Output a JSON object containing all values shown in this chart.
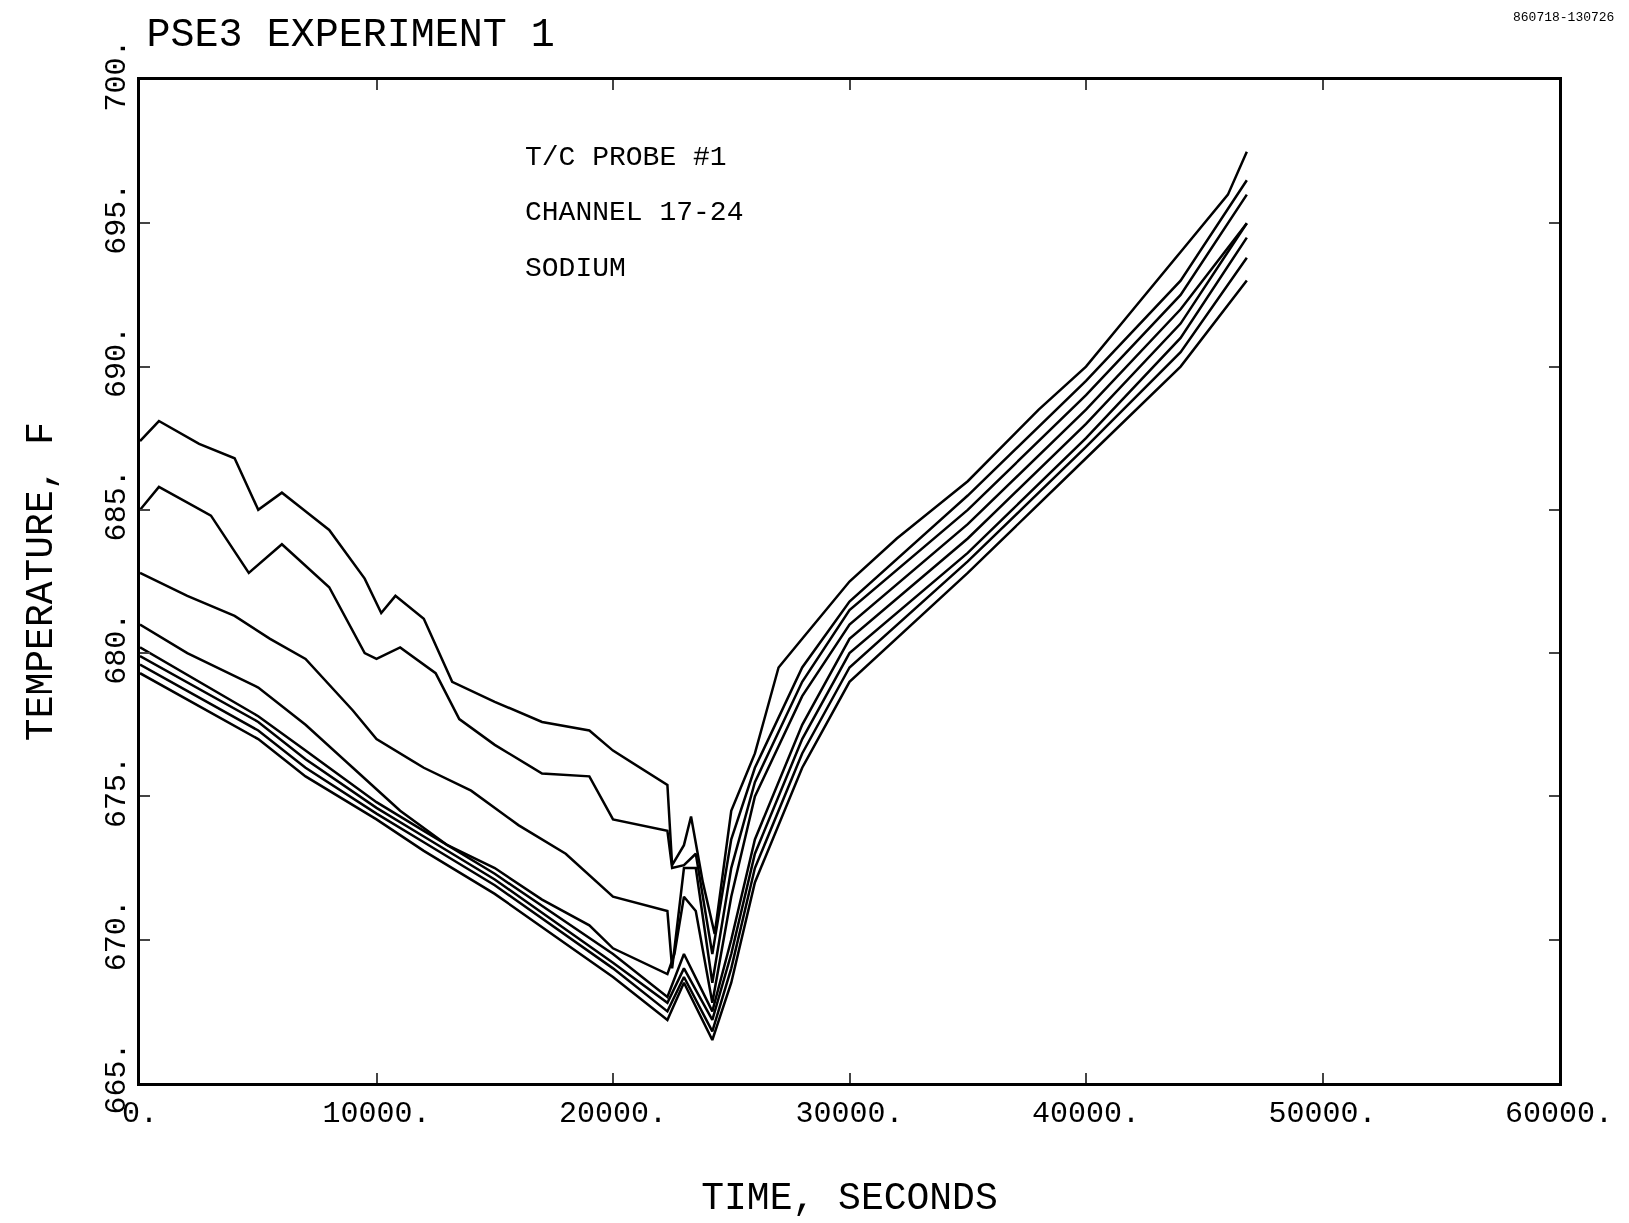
{
  "chart_data": {
    "type": "line",
    "title": "PSE3 EXPERIMENT 1",
    "xlabel": "TIME, SECONDS",
    "ylabel": "TEMPERATURE, F",
    "annotations": [
      "T/C PROBE #1",
      "CHANNEL 17-24",
      "SODIUM",
      "860718-130726"
    ],
    "xlim": [
      0,
      60000
    ],
    "xticks": [
      {
        "value": 0,
        "label": "0."
      },
      {
        "value": 10000,
        "label": "10000."
      },
      {
        "value": 20000,
        "label": "20000."
      },
      {
        "value": 30000,
        "label": "30000."
      },
      {
        "value": 40000,
        "label": "40000."
      },
      {
        "value": 50000,
        "label": "50000."
      },
      {
        "value": 60000,
        "label": "60000."
      }
    ],
    "ylim": [
      665,
      700
    ],
    "yticks": [
      {
        "value": 665,
        "label": "665."
      },
      {
        "value": 670,
        "label": "670."
      },
      {
        "value": 675,
        "label": "675."
      },
      {
        "value": 680,
        "label": "680."
      },
      {
        "value": 685,
        "label": "685."
      },
      {
        "value": 690,
        "label": "690."
      },
      {
        "value": 695,
        "label": "695."
      },
      {
        "value": 700,
        "label": "700."
      }
    ],
    "grid": false,
    "marker": "none",
    "line_style": "solid",
    "series": [
      {
        "color": "#000000",
        "x": [
          0,
          800,
          2500,
          4000,
          5000,
          6000,
          8000,
          9500,
          10200,
          10800,
          12000,
          13200,
          15000,
          17000,
          19000,
          20000,
          22300,
          22500,
          23000,
          23300,
          23800,
          24300,
          25000,
          26000,
          27000,
          28000,
          30000,
          32000,
          35000,
          38000,
          40000,
          42000,
          44000,
          46000,
          46800
        ],
        "values": [
          687.4,
          688.1,
          687.3,
          686.8,
          685.0,
          685.6,
          684.3,
          682.6,
          681.4,
          682.0,
          681.2,
          679.0,
          678.3,
          677.6,
          677.3,
          676.6,
          675.4,
          672.6,
          673.3,
          674.3,
          672.0,
          670.2,
          674.5,
          676.5,
          679.5,
          680.5,
          682.5,
          684.0,
          686.0,
          688.5,
          690.0,
          692.0,
          694.0,
          696.0,
          697.5
        ]
      },
      {
        "color": "#000000",
        "x": [
          0,
          800,
          3000,
          4600,
          6000,
          8000,
          9500,
          10000,
          11000,
          12500,
          13500,
          15000,
          17000,
          19000,
          20000,
          22300,
          22500,
          23000,
          23500,
          24200,
          25000,
          26000,
          28000,
          30000,
          35000,
          40000,
          44000,
          46800
        ],
        "values": [
          685.0,
          685.8,
          684.8,
          682.8,
          683.8,
          682.3,
          680.0,
          679.8,
          680.2,
          679.3,
          677.7,
          676.8,
          675.8,
          675.7,
          674.2,
          673.8,
          672.5,
          672.6,
          673.0,
          669.5,
          673.5,
          676.0,
          679.5,
          681.8,
          685.5,
          689.5,
          693.0,
          696.5
        ]
      },
      {
        "color": "#000000",
        "x": [
          0,
          2000,
          4000,
          5500,
          7000,
          9000,
          10000,
          12000,
          14000,
          16000,
          18000,
          20000,
          22300,
          22500,
          23000,
          23500,
          24200,
          25000,
          26000,
          28000,
          30000,
          35000,
          40000,
          44000,
          46800
        ],
        "values": [
          682.8,
          682.0,
          681.3,
          680.5,
          679.8,
          678.0,
          677.0,
          676.0,
          675.2,
          674.0,
          673.0,
          671.5,
          671.0,
          669.0,
          672.5,
          672.5,
          668.5,
          672.5,
          675.5,
          679.0,
          681.5,
          685.0,
          689.0,
          692.5,
          696.0
        ]
      },
      {
        "color": "#000000",
        "x": [
          0,
          2000,
          5000,
          7000,
          9000,
          11000,
          13000,
          15000,
          17000,
          19000,
          20000,
          22300,
          22600,
          23000,
          23500,
          24200,
          25000,
          26000,
          28000,
          30000,
          35000,
          40000,
          44000,
          46800
        ],
        "values": [
          681.0,
          680.0,
          678.8,
          677.5,
          676.0,
          674.5,
          673.3,
          672.5,
          671.4,
          670.5,
          669.7,
          668.8,
          669.5,
          671.5,
          671.0,
          667.8,
          671.5,
          675.0,
          678.5,
          681.0,
          684.5,
          688.5,
          692.0,
          695.0
        ]
      },
      {
        "color": "#000000",
        "x": [
          0,
          5000,
          7000,
          10000,
          12000,
          15000,
          20000,
          22300,
          23000,
          24200,
          25000,
          26000,
          28000,
          30000,
          35000,
          40000,
          44000,
          46800
        ],
        "values": [
          680.2,
          677.8,
          676.6,
          674.8,
          673.8,
          672.3,
          669.5,
          668.0,
          669.5,
          667.5,
          670.0,
          673.5,
          677.5,
          680.5,
          684.0,
          688.0,
          691.5,
          695.0
        ]
      },
      {
        "color": "#000000",
        "x": [
          0,
          5000,
          7000,
          10000,
          12000,
          15000,
          20000,
          22300,
          23000,
          24200,
          25000,
          26000,
          28000,
          30000,
          35000,
          40000,
          44000,
          46800
        ],
        "values": [
          679.9,
          677.6,
          676.3,
          674.6,
          673.6,
          672.1,
          669.2,
          667.8,
          669.0,
          667.2,
          669.5,
          673.0,
          677.0,
          680.0,
          683.5,
          687.5,
          691.0,
          694.5
        ]
      },
      {
        "color": "#000000",
        "x": [
          0,
          5000,
          7000,
          10000,
          12000,
          15000,
          20000,
          22300,
          23000,
          24200,
          25000,
          26000,
          28000,
          30000,
          35000,
          40000,
          44000,
          46800
        ],
        "values": [
          679.6,
          677.3,
          676.0,
          674.4,
          673.4,
          671.9,
          669.0,
          667.5,
          668.7,
          666.8,
          669.0,
          672.5,
          676.5,
          679.5,
          683.2,
          687.2,
          690.5,
          693.8
        ]
      },
      {
        "color": "#000000",
        "x": [
          0,
          5000,
          7000,
          10000,
          12000,
          15000,
          20000,
          22300,
          23000,
          24200,
          25000,
          26000,
          28000,
          30000,
          35000,
          40000,
          44000,
          46800
        ],
        "values": [
          679.3,
          677.0,
          675.7,
          674.2,
          673.1,
          671.6,
          668.7,
          667.2,
          668.5,
          666.5,
          668.5,
          672.0,
          676.0,
          679.0,
          682.8,
          686.8,
          690.0,
          693.0
        ]
      }
    ]
  }
}
